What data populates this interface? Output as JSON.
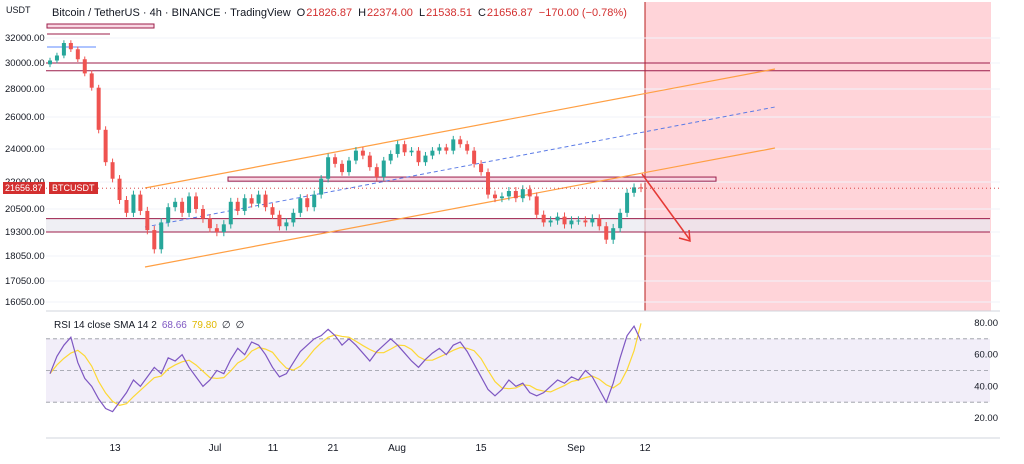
{
  "header": {
    "symbol": "Bitcoin / TetherUS · 4h · BINANCE · TradingView",
    "open_label": "O",
    "open": "21826.87",
    "high_label": "H",
    "high": "22374.00",
    "low_label": "L",
    "low": "21538.51",
    "close_label": "C",
    "close": "21656.87",
    "change": "−170.00 (−0.78%)"
  },
  "unit": "USDT",
  "price_tags": {
    "last": "21656.87",
    "ticker": "BTCUSDT"
  },
  "rsi_header": {
    "text": "RSI 14 close SMA 14 2",
    "rsi": "68.66",
    "sma": "79.80",
    "z1": "∅",
    "z2": "∅"
  },
  "colors": {
    "up": "#26a69a",
    "down": "#ef5350",
    "rsi": "#7e57c2",
    "sma": "#fdd835",
    "channel": "#ff9f43",
    "zone": "#9c1d4a",
    "forecast_bg": "#ffcdd2",
    "arrow": "#e53935"
  },
  "chart_data": {
    "type": "candlestick",
    "price_axis": {
      "labels": [
        "32000.00",
        "30000.00",
        "28000.00",
        "26000.00",
        "24000.00",
        "22000.00",
        "20500.00",
        "19300.00",
        "18050.00",
        "17050.00",
        "16050.00"
      ],
      "values": [
        32000,
        30000,
        28000,
        26000,
        24000,
        22000,
        20500,
        19300,
        18050,
        17050,
        16050
      ]
    },
    "x_axis": {
      "labels": [
        "13",
        "Jul",
        "11",
        "21",
        "Aug",
        "15",
        "Sep",
        "12"
      ]
    },
    "price_close": [
      30200,
      30600,
      31600,
      31100,
      30300,
      29200,
      28100,
      25200,
      23200,
      22200,
      21000,
      20300,
      21300,
      20400,
      19400,
      18400,
      19800,
      20600,
      20900,
      20300,
      21200,
      20500,
      20000,
      19500,
      19300,
      19700,
      20900,
      20400,
      21100,
      20800,
      21300,
      20600,
      20200,
      19600,
      19800,
      20300,
      21100,
      20600,
      21300,
      22200,
      23500,
      23100,
      22600,
      23300,
      23900,
      23600,
      22900,
      22300,
      23300,
      23700,
      24300,
      23800,
      23900,
      23200,
      23600,
      23900,
      24100,
      23900,
      24600,
      24300,
      23900,
      23100,
      22600,
      21300,
      21100,
      21200,
      21500,
      21100,
      21600,
      21200,
      20200,
      19800,
      19900,
      20100,
      19700,
      19900,
      19900,
      19800,
      20000,
      19600,
      18900,
      19500,
      20300,
      21400,
      21700,
      21657
    ],
    "rsi_values": [
      48,
      59,
      66,
      71,
      55,
      45,
      40,
      32,
      26,
      24,
      30,
      36,
      44,
      40,
      46,
      52,
      48,
      58,
      56,
      60,
      52,
      46,
      40,
      44,
      50,
      48,
      57,
      64,
      60,
      68,
      66,
      60,
      52,
      46,
      48,
      55,
      62,
      66,
      70,
      72,
      76,
      72,
      66,
      70,
      66,
      61,
      56,
      62,
      66,
      70,
      66,
      61,
      56,
      52,
      57,
      61,
      64,
      60,
      66,
      68,
      62,
      54,
      46,
      38,
      34,
      38,
      44,
      40,
      42,
      36,
      34,
      36,
      40,
      44,
      42,
      46,
      44,
      50,
      46,
      38,
      30,
      42,
      58,
      72,
      78,
      68.66
    ],
    "rsi_axis": {
      "labels": [
        "80.00",
        "60.00",
        "40.00",
        "20.00"
      ],
      "values": [
        80,
        60,
        40,
        20
      ]
    },
    "rsi_bands": [
      70,
      50,
      30
    ],
    "horizontal_zones": [
      [
        29400,
        30000
      ],
      [
        19300,
        20000
      ]
    ],
    "resistance_box": [
      22050,
      22300
    ],
    "top_box_price": 32400
  }
}
